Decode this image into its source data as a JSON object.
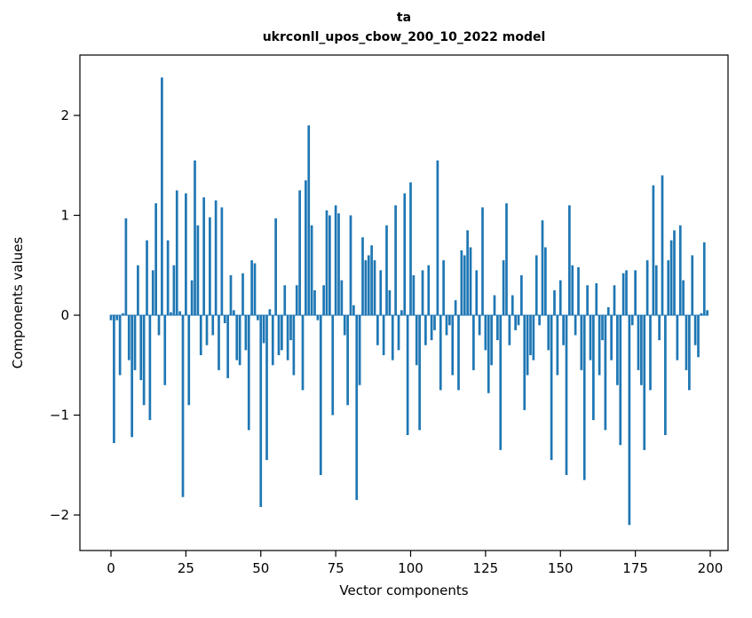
{
  "figure": {
    "title_line1": "ta",
    "title_line2": "ukrconll_upos_cbow_200_10_2022 model",
    "xlabel": "Vector components",
    "ylabel": "Components values"
  },
  "chart_data": {
    "type": "bar",
    "title": "ta — ukrconll_upos_cbow_200_10_2022 model",
    "xlabel": "Vector components",
    "ylabel": "Components values",
    "bar_color": "#1f77b4",
    "grid": false,
    "legend": "none",
    "x_start": 0,
    "xlim": [
      -10,
      209
    ],
    "ylim": [
      -2.35,
      2.6
    ],
    "xticks": [
      0,
      25,
      50,
      75,
      100,
      125,
      150,
      175,
      200
    ],
    "yticks": [
      -2,
      -1,
      0,
      1,
      2
    ],
    "values": [
      -0.05,
      -1.28,
      -0.05,
      -0.6,
      0.02,
      0.97,
      -0.45,
      -1.22,
      -0.55,
      0.5,
      -0.65,
      -0.9,
      0.75,
      -1.05,
      0.45,
      1.12,
      -0.2,
      2.38,
      -0.7,
      0.75,
      0.03,
      0.5,
      1.25,
      0.04,
      -1.82,
      1.22,
      -0.9,
      0.35,
      1.55,
      0.9,
      -0.4,
      1.18,
      -0.3,
      0.98,
      -0.2,
      1.15,
      -0.55,
      1.08,
      -0.08,
      -0.63,
      0.4,
      0.05,
      -0.45,
      -0.5,
      0.42,
      -0.35,
      -1.15,
      0.55,
      0.52,
      -0.05,
      -1.92,
      -0.28,
      -1.45,
      0.06,
      -0.5,
      0.97,
      -0.4,
      -0.35,
      0.3,
      -0.45,
      -0.25,
      -0.6,
      0.3,
      1.25,
      -0.75,
      1.35,
      1.9,
      0.9,
      0.25,
      -0.05,
      -1.6,
      0.3,
      1.05,
      1.0,
      -1.0,
      1.1,
      1.02,
      0.35,
      -0.2,
      -0.9,
      1.0,
      0.1,
      -1.85,
      -0.7,
      0.78,
      0.55,
      0.6,
      0.7,
      0.55,
      -0.3,
      0.45,
      -0.4,
      0.9,
      0.25,
      -0.45,
      1.1,
      -0.35,
      0.05,
      1.22,
      -1.2,
      1.33,
      0.4,
      -0.5,
      -1.15,
      0.45,
      -0.3,
      0.5,
      -0.25,
      -0.15,
      1.55,
      -0.75,
      0.55,
      -0.2,
      -0.1,
      -0.6,
      0.15,
      -0.75,
      0.65,
      0.6,
      0.85,
      0.68,
      -0.55,
      0.45,
      -0.2,
      1.08,
      -0.35,
      -0.78,
      -0.5,
      0.2,
      -0.25,
      -1.35,
      0.55,
      1.12,
      -0.3,
      0.2,
      -0.15,
      -0.1,
      0.4,
      -0.95,
      -0.6,
      -0.4,
      -0.45,
      0.6,
      -0.1,
      0.95,
      0.68,
      -0.35,
      -1.45,
      0.25,
      -0.6,
      0.35,
      -0.3,
      -1.6,
      1.1,
      0.5,
      -0.2,
      0.48,
      -0.55,
      -1.65,
      0.3,
      -0.45,
      -1.05,
      0.32,
      -0.6,
      -0.25,
      -1.15,
      0.08,
      -0.45,
      0.3,
      -0.7,
      -1.3,
      0.42,
      0.45,
      -2.1,
      -0.1,
      0.45,
      -0.55,
      -0.7,
      -1.35,
      0.55,
      -0.75,
      1.3,
      0.5,
      -0.25,
      1.4,
      -1.2,
      0.55,
      0.75,
      0.85,
      -0.45,
      0.9,
      0.35,
      -0.55,
      -0.75,
      0.6,
      -0.3,
      -0.42,
      0.02,
      0.73,
      0.05
    ]
  }
}
